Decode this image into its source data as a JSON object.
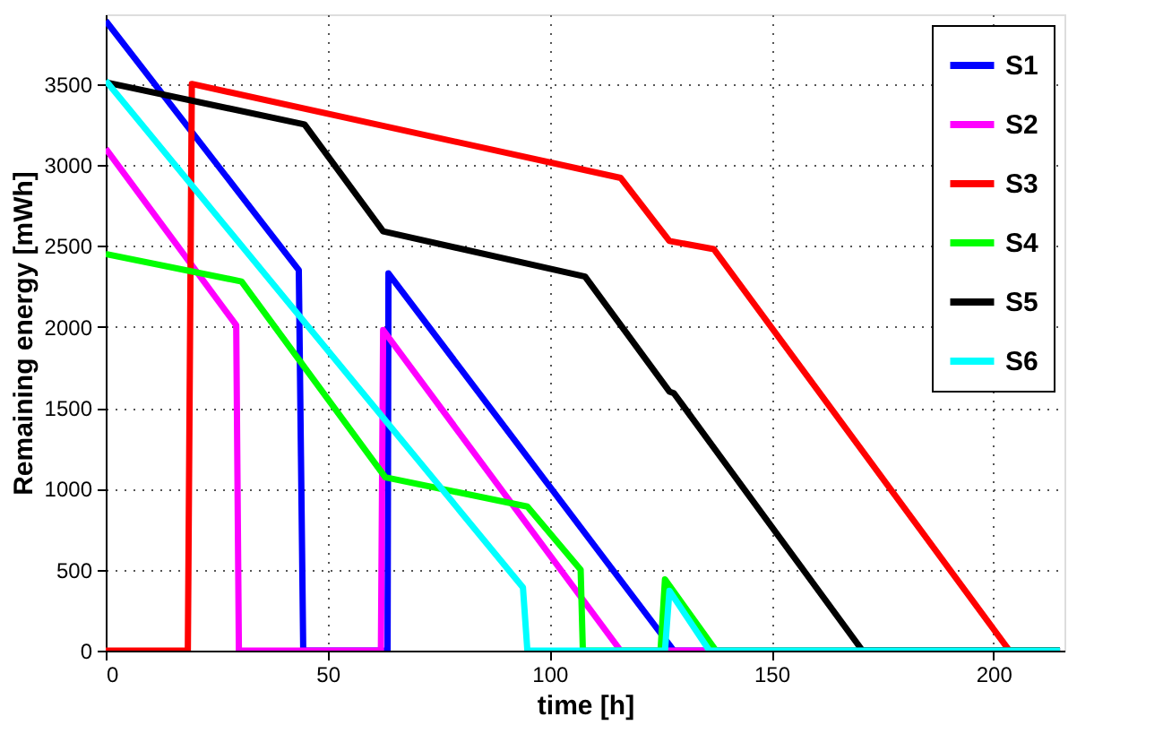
{
  "chart_data": {
    "type": "line",
    "xlabel": "time [h]",
    "ylabel": "Remaining energy [mWh]",
    "xlim": [
      0,
      216
    ],
    "ylim": [
      0,
      3930
    ],
    "xticks": [
      0,
      50,
      100,
      150,
      200
    ],
    "yticks": [
      0,
      500,
      1000,
      1500,
      2000,
      2500,
      3000,
      3500
    ],
    "grid": true,
    "legend": "top right",
    "marker": "none",
    "line_style": "solid",
    "series": [
      {
        "name": "S1",
        "color": "#0000ff",
        "x": [
          0,
          43.5,
          44.5,
          63.5,
          63.7,
          128,
          215
        ],
        "values": [
          3890,
          2350,
          0,
          0,
          2330,
          0,
          0
        ]
      },
      {
        "name": "S2",
        "color": "#ff00ff",
        "x": [
          0,
          29.4,
          30,
          62,
          62.5,
          116,
          215
        ],
        "values": [
          3100,
          2010,
          0,
          0,
          1980,
          0,
          0
        ]
      },
      {
        "name": "S3",
        "color": "#ff0000",
        "x": [
          0,
          18.5,
          19.4,
          116,
          127,
          137,
          203.6,
          215
        ],
        "values": [
          0,
          0,
          3500,
          2920,
          2530,
          2480,
          0,
          0
        ]
      },
      {
        "name": "S4",
        "color": "#00ff00",
        "x": [
          0,
          30.6,
          63,
          95,
          107,
          107.5,
          125,
          126,
          137.5,
          215
        ],
        "values": [
          2450,
          2280,
          1070,
          890,
          500,
          0,
          0,
          440,
          0,
          0
        ]
      },
      {
        "name": "S5",
        "color": "#000000",
        "x": [
          0,
          44.8,
          62.5,
          108,
          127,
          128,
          170.5,
          215
        ],
        "values": [
          3510,
          3250,
          2590,
          2310,
          1600,
          1590,
          0,
          0
        ]
      },
      {
        "name": "S6",
        "color": "#00ffff",
        "x": [
          0,
          94,
          95,
          126,
          127,
          136,
          215
        ],
        "values": [
          3520,
          390,
          0,
          0,
          370,
          0,
          0
        ]
      }
    ]
  }
}
